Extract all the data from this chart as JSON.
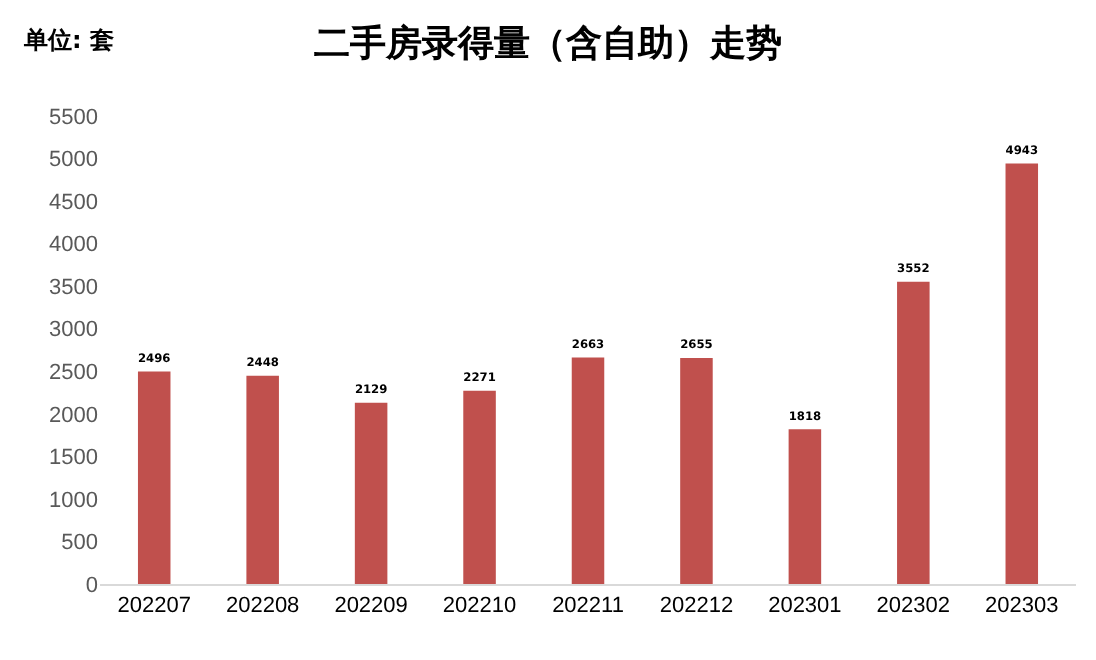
{
  "chart_data": {
    "type": "bar",
    "title": "二手房录得量（含自助）走势",
    "categories": [
      "202207",
      "202208",
      "202209",
      "202210",
      "202211",
      "202212",
      "202301",
      "202302",
      "202303"
    ],
    "values": [
      2496,
      2448,
      2129,
      2271,
      2663,
      2655,
      1818,
      3552,
      4943
    ],
    "color": "#c0504d",
    "ylim": [
      0,
      5500
    ],
    "yticks": [
      0,
      500,
      1000,
      1500,
      2000,
      2500,
      3000,
      3500,
      4000,
      4500,
      5000,
      5500
    ],
    "data_labels": true,
    "annotations": [
      "单位: 套"
    ]
  }
}
